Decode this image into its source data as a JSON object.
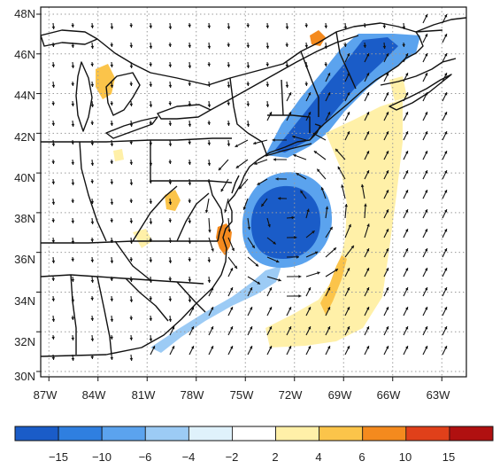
{
  "map": {
    "lat_labels": [
      "48N",
      "46N",
      "44N",
      "42N",
      "40N",
      "38N",
      "36N",
      "34N",
      "32N",
      "30N"
    ],
    "lon_labels": [
      "87W",
      "84W",
      "81W",
      "78W",
      "75W",
      "72W",
      "69W",
      "66W",
      "63W"
    ],
    "lat_range": [
      30,
      48
    ],
    "lon_range": [
      -87.5,
      -61.5
    ],
    "grid": "dotted",
    "field": "wind vectors over shaded anomaly",
    "vortex_center": {
      "lat": 38.0,
      "lon": -72.5
    }
  },
  "colorbar": {
    "tick_labels": [
      "−15",
      "−10",
      "−6",
      "−4",
      "−2",
      "2",
      "4",
      "6",
      "10",
      "15"
    ],
    "colors": [
      "#1a5cc8",
      "#2f7fe0",
      "#5ba3ee",
      "#9ccbf5",
      "#dff1fb",
      "#ffffff",
      "#fff0a8",
      "#fbc44a",
      "#f48a1e",
      "#e0401a",
      "#b01010"
    ]
  },
  "colors": {
    "coast": "#111111",
    "grid": "#9a9a9a",
    "arrow": "#111111"
  }
}
